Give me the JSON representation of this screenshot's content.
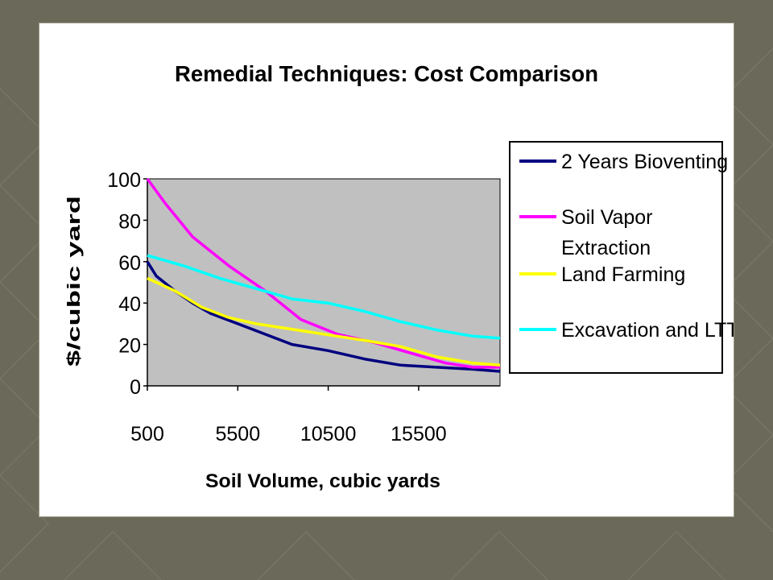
{
  "colors": {
    "slide_background": "#6b6a5a",
    "plot_area": "#c0c0c0",
    "bioventing": "#000080",
    "soil_vapor": "#ff00ff",
    "land_farming": "#ffff00",
    "excavation_ltt": "#00ffff"
  },
  "chart_data": {
    "type": "line",
    "title": "Remedial Techniques: Cost Comparison",
    "xlabel": "Soil Volume, cubic yards",
    "ylabel": "$/cubic yard",
    "xlim": [
      500,
      20000
    ],
    "ylim": [
      0,
      100
    ],
    "x_ticks": [
      500,
      5500,
      10500,
      15500
    ],
    "x_tick_labels": [
      "500",
      "5500",
      "10500",
      "15500"
    ],
    "y_ticks": [
      0,
      20,
      40,
      60,
      80,
      100
    ],
    "y_tick_labels": [
      "0",
      "20",
      "40",
      "60",
      "80",
      "100"
    ],
    "grid": false,
    "legend": "right",
    "series": [
      {
        "name": "2 Years Bioventing",
        "color": "#000080",
        "x": [
          500,
          1000,
          2000,
          3000,
          4000,
          5500,
          7000,
          8500,
          10500,
          12500,
          14500,
          16500,
          18500,
          20000
        ],
        "y": [
          60,
          53,
          46,
          40,
          35,
          30,
          25,
          20,
          17,
          13,
          10,
          9,
          8,
          7
        ]
      },
      {
        "name": "Soil Vapor Extraction",
        "name_lines": [
          "Soil Vapor",
          "Extraction"
        ],
        "color": "#ff00ff",
        "x": [
          500,
          1500,
          3000,
          5000,
          7000,
          9000,
          11000,
          13000,
          15000,
          17000,
          18500,
          20000
        ],
        "y": [
          100,
          88,
          72,
          58,
          46,
          32,
          25,
          21,
          16,
          11,
          9,
          9
        ]
      },
      {
        "name": "Land Farming",
        "color": "#ffff00",
        "x": [
          500,
          2000,
          3500,
          5000,
          6500,
          8000,
          9500,
          11000,
          12500,
          14500,
          16500,
          18500,
          20000
        ],
        "y": [
          52,
          46,
          38,
          33,
          30,
          28,
          26,
          24,
          22,
          19,
          14,
          11,
          10
        ]
      },
      {
        "name": "Excavation and LTT",
        "color": "#00ffff",
        "x": [
          500,
          2500,
          4500,
          6500,
          8500,
          10500,
          12500,
          14500,
          16500,
          18500,
          20000
        ],
        "y": [
          63,
          58,
          52,
          47,
          42,
          40,
          36,
          31,
          27,
          24,
          23
        ]
      }
    ]
  }
}
